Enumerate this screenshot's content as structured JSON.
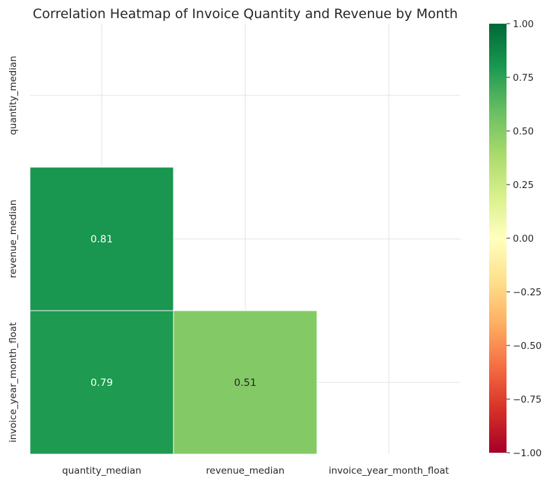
{
  "chart_data": {
    "type": "heatmap",
    "title": "Correlation Heatmap of Invoice Quantity and Revenue by Month",
    "x_labels": [
      "quantity_median",
      "revenue_median",
      "invoice_year_month_float"
    ],
    "y_labels": [
      "quantity_median",
      "revenue_median",
      "invoice_year_month_float"
    ],
    "mask": "upper triangle incl. diagonal",
    "cells": [
      {
        "row": 1,
        "col": 0,
        "value": 0.81,
        "label": "0.81"
      },
      {
        "row": 2,
        "col": 0,
        "value": 0.79,
        "label": "0.79"
      },
      {
        "row": 2,
        "col": 1,
        "value": 0.51,
        "label": "0.51"
      }
    ],
    "colorbar": {
      "colormap": "RdYlGn",
      "range": [
        -1,
        1
      ],
      "ticks": [
        "1.00",
        "0.75",
        "0.50",
        "0.25",
        "0.00",
        "−0.25",
        "−0.50",
        "−0.75",
        "−1.00"
      ],
      "tick_values": [
        1,
        0.75,
        0.5,
        0.25,
        0,
        -0.25,
        -0.5,
        -0.75,
        -1
      ]
    },
    "grid": true
  }
}
